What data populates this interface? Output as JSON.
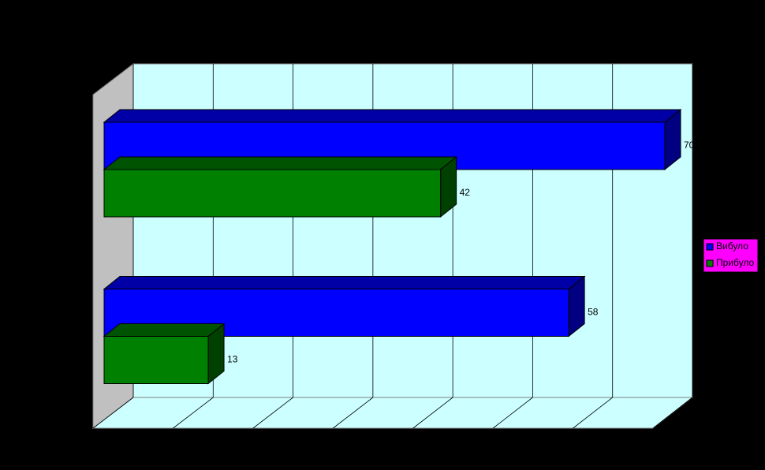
{
  "chart_data": {
    "type": "bar3d",
    "orientation": "horizontal",
    "categories": [
      null,
      null
    ],
    "series": [
      {
        "name": "Вибуло",
        "color": "#0000ff",
        "values": [
          70,
          58
        ]
      },
      {
        "name": "Прибуло",
        "color": "#008000",
        "values": [
          42,
          13
        ]
      }
    ],
    "xlim": [
      0,
      70
    ],
    "xticks": [
      0,
      10,
      20,
      30,
      40,
      50,
      60,
      70
    ],
    "grid": true,
    "legend": "right"
  }
}
